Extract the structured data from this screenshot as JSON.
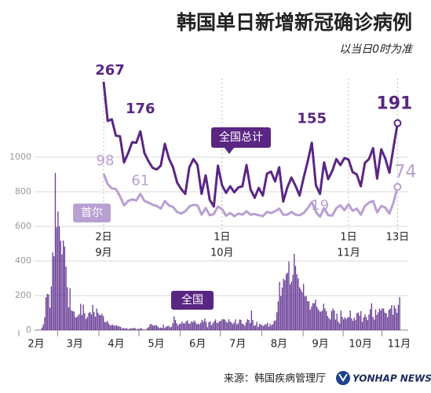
{
  "title": "韩国单日新增新冠确诊病例",
  "subtitle": "以当日0时为准",
  "source": "来源：韩国疾病管理厅",
  "credit": "YONHAP NEWS",
  "chart_data": [
    {
      "type": "bar",
      "series": [
        {
          "name": "全国",
          "color": "#6b3f98",
          "values": [
            0,
            0,
            1,
            1,
            15,
            34,
            74,
            190,
            210,
            207,
            130,
            253,
            449,
            427,
            909,
            595,
            686,
            600,
            516,
            438,
            518,
            483,
            367,
            248,
            131,
            242,
            114,
            110,
            107,
            76,
            74,
            84,
            93,
            152,
            87,
            147,
            98,
            64,
            76,
            100,
            104,
            91,
            146,
            105,
            78,
            125,
            101,
            89,
            86,
            94,
            81,
            47,
            47,
            53,
            39,
            27,
            30,
            32,
            25,
            27,
            27,
            22,
            22,
            18,
            8,
            13,
            9,
            11,
            8,
            6,
            10,
            10,
            10,
            14,
            9,
            4,
            9,
            6,
            13,
            8,
            3,
            2,
            4,
            12,
            18,
            34,
            35,
            27,
            26,
            29,
            27,
            19,
            13,
            15,
            13,
            32,
            12,
            20,
            23,
            25,
            16,
            19,
            40,
            79,
            58,
            39,
            27,
            35,
            38,
            49,
            39,
            39,
            51,
            57,
            38,
            38,
            50,
            45,
            56,
            48,
            34,
            37,
            34,
            43,
            59,
            49,
            67,
            48,
            17,
            46,
            51,
            28,
            39,
            51,
            62,
            42,
            43,
            51,
            54,
            63,
            63,
            61,
            48,
            44,
            63,
            50,
            45,
            35,
            44,
            62,
            33,
            39,
            61,
            60,
            39,
            34,
            26,
            45,
            63,
            59,
            41,
            113,
            58,
            25,
            28,
            48,
            18,
            36,
            31,
            30,
            23,
            34,
            33,
            43,
            20,
            36,
            28,
            34,
            54,
            56,
            103,
            166,
            279,
            197,
            246,
            297,
            288,
            324,
            332,
            397,
            266,
            280,
            320,
            441,
            371,
            323,
            299,
            248,
            235,
            220,
            267,
            195,
            198,
            168,
            167,
            119,
            136,
            156,
            155,
            176,
            136,
            121,
            109,
            106,
            113,
            153,
            126,
            110,
            82,
            70,
            61,
            110,
            125,
            114,
            61,
            95,
            50,
            38,
            113,
            77,
            63,
            75,
            64,
            73,
            75,
            114,
            69,
            54,
            72,
            58,
            98,
            102,
            84,
            110,
            47,
            73,
            91,
            76,
            58,
            91,
            121,
            155,
            77,
            61,
            119,
            88,
            103,
            125,
            114,
            127,
            124,
            101,
            97,
            75,
            118,
            125,
            145,
            89,
            143,
            126,
            100,
            146,
            191
          ]
        }
      ],
      "categories": [
        "2月",
        null,
        null,
        null,
        null,
        null,
        null,
        null,
        null,
        null,
        null,
        null,
        null,
        null,
        null,
        null,
        null,
        null,
        null,
        null,
        null,
        null,
        null,
        null,
        null,
        null,
        null,
        null,
        null,
        "3月",
        null,
        null,
        null,
        null,
        null,
        null,
        null,
        null,
        null,
        null,
        null,
        null,
        null,
        null,
        null,
        null,
        null,
        null,
        null,
        null,
        null,
        null,
        null,
        null,
        null,
        null,
        null,
        null,
        null,
        null,
        "4月",
        null,
        null,
        null,
        null,
        null,
        null,
        null,
        null,
        null,
        null,
        null,
        null,
        null,
        null,
        null,
        null,
        null,
        null,
        null,
        null,
        null,
        null,
        null,
        null,
        null,
        null,
        null,
        null,
        null,
        "5月",
        null,
        null,
        null,
        null,
        null,
        null,
        null,
        null,
        null,
        null,
        null,
        null,
        null,
        null,
        null,
        null,
        null,
        null,
        null,
        null,
        null,
        null,
        null,
        null,
        null,
        null,
        null,
        null,
        null,
        null,
        "6月",
        null,
        null,
        null,
        null,
        null,
        null,
        null,
        null,
        null,
        null,
        null,
        null,
        null,
        null,
        null,
        null,
        null,
        null,
        null,
        null,
        null,
        null,
        null,
        null,
        null,
        null,
        null,
        null,
        null,
        "7月",
        null,
        null,
        null,
        null,
        null,
        null,
        null,
        null,
        null,
        null,
        null,
        null,
        null,
        null,
        null,
        null,
        null,
        null,
        null,
        null,
        null,
        null,
        null,
        null,
        null,
        null,
        null,
        null,
        null,
        null,
        "8月",
        null,
        null,
        null,
        null,
        null,
        null,
        null,
        null,
        null,
        null,
        null,
        null,
        null,
        null,
        null,
        null,
        null,
        null,
        null,
        null,
        null,
        null,
        null,
        null,
        null,
        null,
        null,
        null,
        null,
        null,
        "9月",
        null,
        null,
        null,
        null,
        null,
        null,
        null,
        null,
        null,
        null,
        null,
        null,
        null,
        null,
        null,
        null,
        null,
        null,
        null,
        null,
        null,
        null,
        null,
        null,
        null,
        null,
        null,
        null,
        null,
        "10月",
        null,
        null,
        null,
        null,
        null,
        null,
        null,
        null,
        null,
        null,
        null,
        null,
        null,
        null,
        null,
        null,
        null,
        null,
        null,
        null,
        null,
        null,
        null,
        null,
        null,
        null,
        null,
        null,
        "11月"
      ],
      "ylim": [
        0,
        1000
      ],
      "yticks": [
        0,
        200,
        400,
        600,
        800,
        1000
      ],
      "grid": true
    },
    {
      "type": "line",
      "categories": [
        "2日",
        null,
        null,
        null,
        null,
        null,
        null,
        null,
        null,
        null,
        null,
        null,
        null,
        null,
        null,
        null,
        null,
        null,
        null,
        null,
        null,
        null,
        null,
        null,
        null,
        null,
        null,
        null,
        null,
        "1日",
        null,
        null,
        null,
        null,
        null,
        null,
        null,
        null,
        null,
        null,
        null,
        null,
        null,
        null,
        null,
        null,
        null,
        null,
        null,
        null,
        null,
        null,
        null,
        null,
        null,
        null,
        null,
        null,
        null,
        null,
        "1日",
        null,
        null,
        null,
        null,
        null,
        null,
        null,
        null,
        null,
        null,
        null,
        "13日"
      ],
      "months": [
        "9月",
        null,
        null,
        null,
        null,
        null,
        null,
        null,
        null,
        null,
        null,
        null,
        null,
        null,
        null,
        null,
        null,
        null,
        null,
        null,
        null,
        null,
        null,
        null,
        null,
        null,
        null,
        null,
        null,
        "10月",
        null,
        null,
        null,
        null,
        null,
        null,
        null,
        null,
        null,
        null,
        null,
        null,
        null,
        null,
        null,
        null,
        null,
        null,
        null,
        null,
        null,
        null,
        null,
        null,
        null,
        null,
        null,
        null,
        null,
        null,
        "11月",
        null,
        null,
        null,
        null,
        null,
        null,
        null,
        null,
        null,
        null,
        null,
        null
      ],
      "ylim": [
        0,
        280
      ],
      "series": [
        {
          "name": "全国总计",
          "color": "#5a2683",
          "values": [
            267,
            195,
            198,
            168,
            167,
            119,
            136,
            156,
            155,
            176,
            136,
            121,
            109,
            106,
            113,
            153,
            126,
            110,
            82,
            70,
            61,
            110,
            125,
            114,
            61,
            95,
            50,
            38,
            113,
            77,
            63,
            75,
            64,
            73,
            75,
            114,
            69,
            54,
            72,
            58,
            98,
            102,
            84,
            110,
            47,
            73,
            91,
            76,
            58,
            91,
            121,
            155,
            77,
            61,
            119,
            88,
            103,
            125,
            114,
            127,
            124,
            101,
            97,
            75,
            118,
            125,
            145,
            89,
            143,
            126,
            100,
            146,
            191
          ]
        },
        {
          "name": "首尔",
          "color": "#b9a0d2",
          "values": [
            98,
            79,
            71,
            70,
            57,
            40,
            48,
            51,
            49,
            61,
            48,
            45,
            41,
            39,
            34,
            48,
            40,
            37,
            28,
            25,
            29,
            38,
            41,
            40,
            23,
            35,
            22,
            24,
            38,
            33,
            21,
            26,
            20,
            25,
            23,
            29,
            23,
            24,
            22,
            20,
            28,
            26,
            29,
            34,
            23,
            23,
            28,
            23,
            22,
            26,
            35,
            46,
            28,
            19,
            35,
            22,
            21,
            35,
            40,
            31,
            42,
            30,
            34,
            23,
            39,
            45,
            48,
            27,
            39,
            36,
            25,
            45,
            74
          ]
        }
      ]
    }
  ]
}
